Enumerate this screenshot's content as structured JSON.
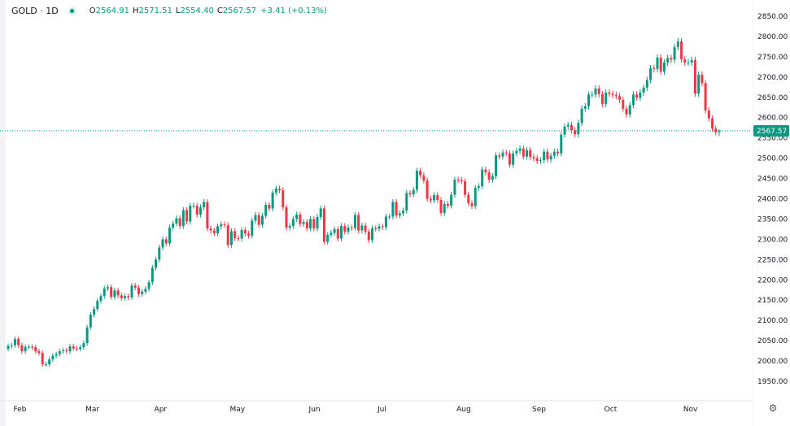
{
  "legend": {
    "symbol": "GOLD · 1D",
    "open_label": "O",
    "open": "2564.91",
    "high_label": "H",
    "high": "2571.51",
    "low_label": "L",
    "low": "2554.40",
    "close_label": "C",
    "close": "2567.57",
    "change": "+3.41 (+0.13%)"
  },
  "colors": {
    "up": "#089981",
    "down": "#f23645",
    "price_line": "#089981"
  },
  "settings_icon": "gear-icon",
  "chart_data": {
    "type": "candlestick",
    "title": "",
    "current_price": 2567.57,
    "current_price_label": "2567.57",
    "ylim": [
      1950,
      2850
    ],
    "yticks": [
      "2850.00",
      "2800.00",
      "2750.00",
      "2700.00",
      "2650.00",
      "2600.00",
      "2550.00",
      "2500.00",
      "2450.00",
      "2400.00",
      "2350.00",
      "2300.00",
      "2250.00",
      "2200.00",
      "2150.00",
      "2100.00",
      "2050.00",
      "2000.00",
      "1950.00"
    ],
    "xticks": [
      "Feb",
      "Mar",
      "Apr",
      "May",
      "Jun",
      "Jul",
      "Aug",
      "Sep",
      "Oct",
      "Nov"
    ],
    "xtick_index": [
      2,
      23,
      43,
      65,
      88,
      108,
      131,
      153,
      174,
      197
    ],
    "grid": false,
    "closes": [
      2037,
      2039,
      2054,
      2039,
      2024,
      2035,
      2035,
      2034,
      2024,
      2020,
      1992,
      1992,
      2004,
      2013,
      2017,
      2024,
      2026,
      2024,
      2036,
      2031,
      2030,
      2034,
      2044,
      2083,
      2114,
      2128,
      2148,
      2160,
      2179,
      2182,
      2158,
      2174,
      2162,
      2155,
      2160,
      2157,
      2186,
      2181,
      2165,
      2171,
      2178,
      2194,
      2230,
      2250,
      2280,
      2300,
      2290,
      2329,
      2339,
      2352,
      2333,
      2372,
      2344,
      2383,
      2383,
      2361,
      2379,
      2392,
      2327,
      2322,
      2315,
      2332,
      2337,
      2335,
      2286,
      2320,
      2303,
      2302,
      2323,
      2314,
      2309,
      2346,
      2360,
      2336,
      2358,
      2385,
      2376,
      2415,
      2425,
      2421,
      2379,
      2329,
      2333,
      2350,
      2361,
      2338,
      2343,
      2327,
      2350,
      2327,
      2355,
      2376,
      2294,
      2311,
      2316,
      2325,
      2302,
      2333,
      2319,
      2329,
      2328,
      2360,
      2322,
      2334,
      2319,
      2298,
      2327,
      2326,
      2332,
      2330,
      2356,
      2356,
      2392,
      2359,
      2364,
      2371,
      2414,
      2411,
      2422,
      2469,
      2458,
      2445,
      2400,
      2396,
      2409,
      2397,
      2365,
      2387,
      2383,
      2410,
      2447,
      2446,
      2443,
      2410,
      2389,
      2382,
      2427,
      2431,
      2472,
      2465,
      2447,
      2456,
      2507,
      2504,
      2514,
      2512,
      2484,
      2512,
      2518,
      2524,
      2504,
      2520,
      2503,
      2500,
      2493,
      2495,
      2516,
      2497,
      2506,
      2516,
      2512,
      2558,
      2578,
      2582,
      2569,
      2559,
      2587,
      2622,
      2628,
      2657,
      2657,
      2672,
      2658,
      2634,
      2662,
      2659,
      2656,
      2653,
      2644,
      2622,
      2608,
      2631,
      2657,
      2649,
      2662,
      2674,
      2693,
      2722,
      2720,
      2748,
      2714,
      2736,
      2747,
      2743,
      2774,
      2788,
      2744,
      2736,
      2736,
      2742,
      2659,
      2706,
      2685,
      2618,
      2598,
      2573,
      2564,
      2567.57
    ],
    "first_open": 2030,
    "last_candle": {
      "open": 2564.91,
      "high": 2571.51,
      "low": 2554.4,
      "close": 2567.57
    }
  }
}
